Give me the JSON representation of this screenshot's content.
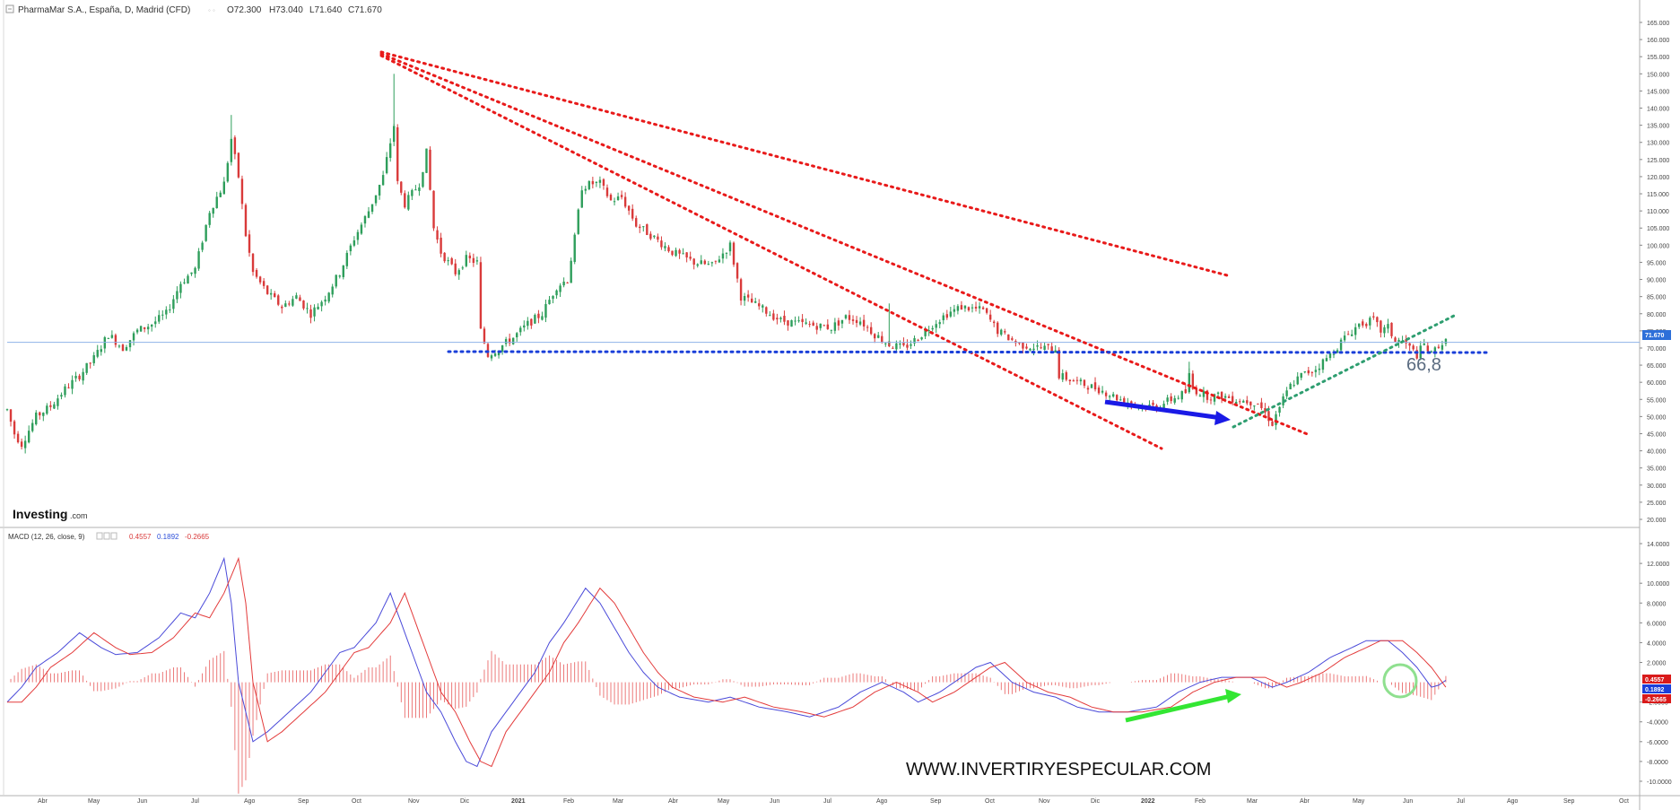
{
  "header": {
    "instrument": "PharmaMar S.A., España, D, Madrid (CFD)",
    "open": "O72.300",
    "high": "H73.040",
    "low": "L71.640",
    "close": "C71.670"
  },
  "macd_header": {
    "label": "MACD (12, 26, close, 9)",
    "v1": "0.4557",
    "v2": "0.1892",
    "v3": "-0.2665"
  },
  "price_tag": "71.670",
  "macd_tags": {
    "t1": "0.4557",
    "t2": "0.1892",
    "t3": "-0.2665"
  },
  "level_label": "66,8",
  "watermark": "WWW.INVERTIRYESPECULAR.COM",
  "brand": {
    "name": "Investing",
    "suffix": ".com"
  },
  "colors": {
    "up": "#2e9e5b",
    "down": "#d93a3a",
    "trend": "#e81a1a",
    "support": "#1a3fd9",
    "rising": "#2e9e70",
    "macd": "#4a4ad9",
    "signal": "#e33b3b",
    "arrow_blue": "#1a1ae6",
    "arrow_green": "#33e633",
    "circle": "#8fe08f",
    "lastprice": "#2d6fd9"
  },
  "chart_data": [
    {
      "type": "candlestick",
      "yaxis": [
        "165.000",
        "160.000",
        "155.000",
        "150.000",
        "145.000",
        "140.000",
        "135.000",
        "130.000",
        "125.000",
        "120.000",
        "115.000",
        "110.000",
        "105.000",
        "100.000",
        "95.000",
        "90.000",
        "85.000",
        "80.000",
        "75.000",
        "70.000",
        "65.000",
        "60.000",
        "55.000",
        "50.000",
        "45.000",
        "40.000",
        "35.000",
        "30.000",
        "25.000",
        "20.000"
      ],
      "ylim": [
        20,
        165
      ],
      "key_levels": {
        "support": 66.8,
        "last_close": 71.67
      },
      "path_points": [
        [
          0,
          52
        ],
        [
          2,
          45
        ],
        [
          4,
          42
        ],
        [
          8,
          50
        ],
        [
          12,
          53
        ],
        [
          16,
          58
        ],
        [
          20,
          62
        ],
        [
          24,
          67
        ],
        [
          28,
          74
        ],
        [
          32,
          70
        ],
        [
          36,
          75
        ],
        [
          40,
          77
        ],
        [
          44,
          80
        ],
        [
          48,
          89
        ],
        [
          52,
          93
        ],
        [
          56,
          110
        ],
        [
          60,
          118
        ],
        [
          62,
          131
        ],
        [
          64,
          120
        ],
        [
          66,
          103
        ],
        [
          68,
          92
        ],
        [
          72,
          86
        ],
        [
          76,
          82
        ],
        [
          80,
          85
        ],
        [
          84,
          80
        ],
        [
          88,
          85
        ],
        [
          92,
          92
        ],
        [
          96,
          102
        ],
        [
          100,
          110
        ],
        [
          104,
          120
        ],
        [
          106,
          130
        ],
        [
          107,
          135
        ],
        [
          108,
          118
        ],
        [
          110,
          112
        ],
        [
          114,
          118
        ],
        [
          116,
          127
        ],
        [
          118,
          105
        ],
        [
          120,
          98
        ],
        [
          124,
          92
        ],
        [
          127,
          96
        ],
        [
          130,
          95
        ],
        [
          131,
          75
        ],
        [
          133,
          68
        ],
        [
          136,
          70
        ],
        [
          140,
          73
        ],
        [
          144,
          77
        ],
        [
          148,
          80
        ],
        [
          152,
          88
        ],
        [
          155,
          90
        ],
        [
          157,
          102
        ],
        [
          159,
          117
        ],
        [
          162,
          118
        ],
        [
          164,
          118
        ],
        [
          167,
          113
        ],
        [
          170,
          114
        ],
        [
          174,
          106
        ],
        [
          178,
          103
        ],
        [
          184,
          98
        ],
        [
          190,
          95
        ],
        [
          195,
          94
        ],
        [
          200,
          100
        ],
        [
          203,
          85
        ],
        [
          208,
          82
        ],
        [
          214,
          78
        ],
        [
          220,
          77
        ],
        [
          228,
          76
        ],
        [
          232,
          79
        ],
        [
          236,
          78
        ],
        [
          240,
          74
        ],
        [
          244,
          71
        ],
        [
          248,
          70
        ],
        [
          252,
          73
        ],
        [
          256,
          77
        ],
        [
          260,
          80
        ],
        [
          264,
          82
        ],
        [
          270,
          81
        ],
        [
          274,
          75
        ],
        [
          280,
          71
        ],
        [
          286,
          70
        ],
        [
          290,
          70
        ],
        [
          291,
          62
        ],
        [
          296,
          60
        ],
        [
          302,
          58
        ],
        [
          308,
          55
        ],
        [
          314,
          53
        ],
        [
          318,
          53
        ],
        [
          322,
          55
        ],
        [
          326,
          57
        ],
        [
          327,
          62
        ],
        [
          328,
          58
        ],
        [
          332,
          56
        ],
        [
          336,
          56
        ],
        [
          340,
          55
        ],
        [
          346,
          54
        ],
        [
          348,
          51
        ],
        [
          350,
          48
        ],
        [
          352,
          53
        ],
        [
          355,
          59
        ],
        [
          358,
          62
        ],
        [
          362,
          64
        ],
        [
          366,
          68
        ],
        [
          370,
          73
        ],
        [
          374,
          77
        ],
        [
          378,
          78
        ],
        [
          380,
          75
        ],
        [
          382,
          76
        ],
        [
          384,
          72
        ],
        [
          386,
          72
        ],
        [
          388,
          70
        ],
        [
          390,
          68
        ],
        [
          392,
          71
        ],
        [
          394,
          68
        ],
        [
          396,
          71
        ],
        [
          398,
          71.67
        ]
      ]
    },
    {
      "type": "line",
      "title": "MACD (12, 26, close, 9)",
      "yaxis": [
        "14.0000",
        "12.0000",
        "10.0000",
        "8.0000",
        "6.0000",
        "4.0000",
        "2.0000",
        "-2.0000",
        "-4.0000",
        "-6.0000",
        "-8.0000",
        "-10.0000"
      ],
      "ylim": [
        -11,
        15
      ],
      "macd_points": [
        [
          0,
          -2
        ],
        [
          4,
          -0.5
        ],
        [
          8,
          1.5
        ],
        [
          14,
          3.0
        ],
        [
          20,
          5.0
        ],
        [
          26,
          3.5
        ],
        [
          30,
          2.8
        ],
        [
          36,
          3.0
        ],
        [
          42,
          4.5
        ],
        [
          48,
          7
        ],
        [
          52,
          6.5
        ],
        [
          56,
          9
        ],
        [
          60,
          12.5
        ],
        [
          62,
          8
        ],
        [
          64,
          0
        ],
        [
          68,
          -6
        ],
        [
          72,
          -5
        ],
        [
          78,
          -3
        ],
        [
          84,
          -1
        ],
        [
          88,
          1
        ],
        [
          92,
          3
        ],
        [
          96,
          3.5
        ],
        [
          102,
          6
        ],
        [
          106,
          9
        ],
        [
          110,
          5
        ],
        [
          114,
          1
        ],
        [
          116,
          -1
        ],
        [
          120,
          -3
        ],
        [
          124,
          -6
        ],
        [
          127,
          -8
        ],
        [
          130,
          -8.5
        ],
        [
          134,
          -5
        ],
        [
          140,
          -2
        ],
        [
          146,
          1
        ],
        [
          150,
          4
        ],
        [
          154,
          6
        ],
        [
          160,
          9.5
        ],
        [
          164,
          8
        ],
        [
          168,
          5.5
        ],
        [
          172,
          3
        ],
        [
          176,
          1
        ],
        [
          180,
          -0.5
        ],
        [
          186,
          -1.5
        ],
        [
          194,
          -2
        ],
        [
          200,
          -1.5
        ],
        [
          208,
          -2.5
        ],
        [
          216,
          -3
        ],
        [
          222,
          -3.5
        ],
        [
          230,
          -2.5
        ],
        [
          236,
          -1
        ],
        [
          242,
          0
        ],
        [
          248,
          -1
        ],
        [
          252,
          -2
        ],
        [
          258,
          -1
        ],
        [
          262,
          0
        ],
        [
          268,
          1.5
        ],
        [
          272,
          2
        ],
        [
          278,
          0
        ],
        [
          284,
          -1
        ],
        [
          290,
          -1.5
        ],
        [
          296,
          -2.5
        ],
        [
          302,
          -3
        ],
        [
          310,
          -3
        ],
        [
          318,
          -2.5
        ],
        [
          324,
          -1
        ],
        [
          330,
          0
        ],
        [
          336,
          0.5
        ],
        [
          344,
          0.5
        ],
        [
          350,
          -0.5
        ],
        [
          354,
          0
        ],
        [
          360,
          1
        ],
        [
          366,
          2.5
        ],
        [
          372,
          3.5
        ],
        [
          376,
          4.2
        ],
        [
          382,
          4.2
        ],
        [
          386,
          3
        ],
        [
          390,
          1.5
        ],
        [
          394,
          -0.5
        ],
        [
          396,
          -0.3
        ],
        [
          398,
          0.2
        ]
      ],
      "signal_lag": 4,
      "hist_scale": 0.9
    }
  ]
}
